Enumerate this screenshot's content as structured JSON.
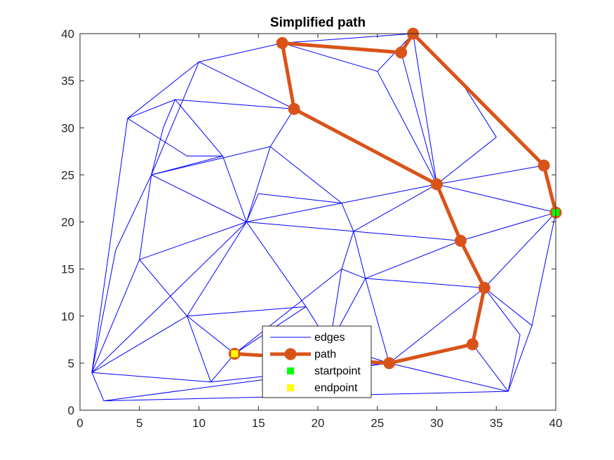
{
  "chart_data": {
    "type": "line",
    "title": "Simplified path",
    "xlabel": "",
    "ylabel": "",
    "xlim": [
      0,
      40
    ],
    "ylim": [
      0,
      40
    ],
    "xticks": [
      0,
      5,
      10,
      15,
      20,
      25,
      30,
      35,
      40
    ],
    "yticks": [
      0,
      5,
      10,
      15,
      20,
      25,
      30,
      35,
      40
    ],
    "grid": false,
    "legend_position": "bottom-center",
    "colors": {
      "edges": "#0000ff",
      "path": "#d95319",
      "startpoint": "#00ff00",
      "endpoint": "#ffff00",
      "axis": "#262626"
    },
    "edges_segments": [
      [
        [
          1,
          4
        ],
        [
          4,
          31
        ]
      ],
      [
        [
          4,
          31
        ],
        [
          10,
          37
        ]
      ],
      [
        [
          10,
          37
        ],
        [
          17,
          39
        ]
      ],
      [
        [
          17,
          39
        ],
        [
          28,
          40
        ]
      ],
      [
        [
          28,
          40
        ],
        [
          39,
          26
        ]
      ],
      [
        [
          39,
          26
        ],
        [
          40,
          21
        ]
      ],
      [
        [
          40,
          21
        ],
        [
          38,
          9
        ]
      ],
      [
        [
          38,
          9
        ],
        [
          36,
          2
        ]
      ],
      [
        [
          36,
          2
        ],
        [
          2,
          1
        ]
      ],
      [
        [
          2,
          1
        ],
        [
          1,
          4
        ]
      ],
      [
        [
          4,
          31
        ],
        [
          8,
          33
        ]
      ],
      [
        [
          8,
          33
        ],
        [
          18,
          32
        ]
      ],
      [
        [
          4,
          31
        ],
        [
          9,
          27
        ]
      ],
      [
        [
          9,
          27
        ],
        [
          12,
          27
        ]
      ],
      [
        [
          6,
          25
        ],
        [
          12,
          27
        ]
      ],
      [
        [
          6,
          25
        ],
        [
          16,
          28
        ]
      ],
      [
        [
          16,
          28
        ],
        [
          18,
          32
        ]
      ],
      [
        [
          8,
          33
        ],
        [
          12,
          27
        ]
      ],
      [
        [
          7,
          30
        ],
        [
          8,
          33
        ]
      ],
      [
        [
          7,
          30
        ],
        [
          6,
          25
        ]
      ],
      [
        [
          10,
          37
        ],
        [
          6,
          25
        ]
      ],
      [
        [
          10,
          37
        ],
        [
          18,
          32
        ]
      ],
      [
        [
          17,
          39
        ],
        [
          18,
          32
        ]
      ],
      [
        [
          17,
          39
        ],
        [
          25,
          36
        ]
      ],
      [
        [
          25,
          36
        ],
        [
          28,
          40
        ]
      ],
      [
        [
          25,
          36
        ],
        [
          30,
          24
        ]
      ],
      [
        [
          18,
          32
        ],
        [
          30,
          24
        ]
      ],
      [
        [
          27,
          38
        ],
        [
          30,
          24
        ]
      ],
      [
        [
          28,
          40
        ],
        [
          30,
          24
        ]
      ],
      [
        [
          28,
          40
        ],
        [
          32,
          35
        ]
      ],
      [
        [
          32,
          35
        ],
        [
          35,
          29
        ]
      ],
      [
        [
          35,
          29
        ],
        [
          30,
          24
        ]
      ],
      [
        [
          39,
          26
        ],
        [
          30,
          24
        ]
      ],
      [
        [
          40,
          21
        ],
        [
          30,
          24
        ]
      ],
      [
        [
          40,
          21
        ],
        [
          32,
          18
        ]
      ],
      [
        [
          32,
          18
        ],
        [
          30,
          24
        ]
      ],
      [
        [
          22,
          22
        ],
        [
          14,
          20
        ]
      ],
      [
        [
          22,
          22
        ],
        [
          15,
          23
        ]
      ],
      [
        [
          15,
          23
        ],
        [
          14,
          20
        ]
      ],
      [
        [
          16,
          28
        ],
        [
          22,
          22
        ]
      ],
      [
        [
          12,
          27
        ],
        [
          14,
          20
        ]
      ],
      [
        [
          16,
          28
        ],
        [
          14,
          20
        ]
      ],
      [
        [
          6,
          25
        ],
        [
          14,
          20
        ]
      ],
      [
        [
          6,
          25
        ],
        [
          5,
          16
        ]
      ],
      [
        [
          5,
          16
        ],
        [
          14,
          20
        ]
      ],
      [
        [
          3,
          17
        ],
        [
          6,
          25
        ]
      ],
      [
        [
          3,
          17
        ],
        [
          1,
          4
        ]
      ],
      [
        [
          5,
          16
        ],
        [
          1,
          4
        ]
      ],
      [
        [
          5,
          16
        ],
        [
          9,
          10
        ]
      ],
      [
        [
          9,
          10
        ],
        [
          14,
          20
        ]
      ],
      [
        [
          14,
          20
        ],
        [
          19,
          11
        ]
      ],
      [
        [
          14,
          20
        ],
        [
          23,
          19
        ]
      ],
      [
        [
          22,
          22
        ],
        [
          23,
          19
        ]
      ],
      [
        [
          22,
          22
        ],
        [
          30,
          24
        ]
      ],
      [
        [
          23,
          19
        ],
        [
          30,
          24
        ]
      ],
      [
        [
          23,
          19
        ],
        [
          32,
          18
        ]
      ],
      [
        [
          40,
          21
        ],
        [
          34,
          13
        ]
      ],
      [
        [
          34,
          13
        ],
        [
          32,
          18
        ]
      ],
      [
        [
          24,
          14
        ],
        [
          32,
          18
        ]
      ],
      [
        [
          23,
          19
        ],
        [
          24,
          14
        ]
      ],
      [
        [
          24,
          14
        ],
        [
          34,
          13
        ]
      ],
      [
        [
          24,
          14
        ],
        [
          26,
          5
        ]
      ],
      [
        [
          26,
          5
        ],
        [
          34,
          13
        ]
      ],
      [
        [
          34,
          13
        ],
        [
          33,
          7
        ]
      ],
      [
        [
          33,
          7
        ],
        [
          26,
          5
        ]
      ],
      [
        [
          34,
          13
        ],
        [
          38,
          9
        ]
      ],
      [
        [
          34,
          13
        ],
        [
          37,
          8
        ]
      ],
      [
        [
          37,
          8
        ],
        [
          36,
          2
        ]
      ],
      [
        [
          33,
          7
        ],
        [
          36,
          2
        ]
      ],
      [
        [
          26,
          5
        ],
        [
          36,
          2
        ]
      ],
      [
        [
          26,
          5
        ],
        [
          21,
          7
        ]
      ],
      [
        [
          21,
          7
        ],
        [
          24,
          14
        ]
      ],
      [
        [
          21,
          7
        ],
        [
          22,
          15
        ]
      ],
      [
        [
          22,
          15
        ],
        [
          24,
          14
        ]
      ],
      [
        [
          22,
          15
        ],
        [
          23,
          19
        ]
      ],
      [
        [
          22,
          15
        ],
        [
          13,
          6
        ]
      ],
      [
        [
          19,
          11
        ],
        [
          21,
          7
        ]
      ],
      [
        [
          19,
          11
        ],
        [
          13,
          6
        ]
      ],
      [
        [
          9,
          10
        ],
        [
          19,
          11
        ]
      ],
      [
        [
          9,
          10
        ],
        [
          13,
          6
        ]
      ],
      [
        [
          9,
          10
        ],
        [
          11,
          3
        ]
      ],
      [
        [
          9,
          10
        ],
        [
          1,
          4
        ]
      ],
      [
        [
          11,
          3
        ],
        [
          13,
          6
        ]
      ],
      [
        [
          11,
          3
        ],
        [
          1,
          4
        ]
      ],
      [
        [
          11,
          3
        ],
        [
          26,
          5
        ]
      ],
      [
        [
          2,
          1
        ],
        [
          26,
          5
        ]
      ],
      [
        [
          1,
          4
        ],
        [
          14,
          20
        ]
      ]
    ],
    "series": [
      {
        "name": "path",
        "points": [
          [
            40,
            21
          ],
          [
            39,
            26
          ],
          [
            28,
            40
          ],
          [
            27,
            38
          ],
          [
            17,
            39
          ],
          [
            18,
            32
          ],
          [
            30,
            24
          ],
          [
            32,
            18
          ],
          [
            34,
            13
          ],
          [
            33,
            7
          ],
          [
            26,
            5
          ],
          [
            13,
            6
          ]
        ]
      }
    ],
    "startpoint": [
      40,
      21
    ],
    "endpoint": [
      13,
      6
    ],
    "legend": [
      "edges",
      "path",
      "startpoint",
      "endpoint"
    ]
  }
}
